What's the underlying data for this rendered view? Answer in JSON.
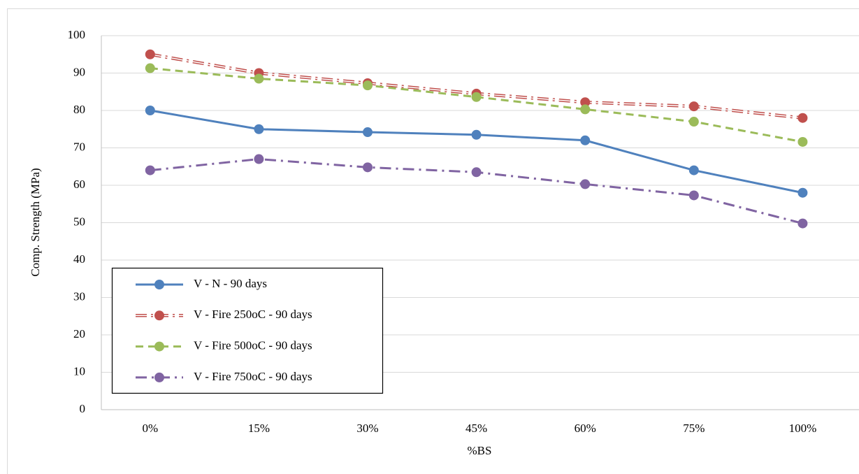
{
  "chart_data": {
    "type": "line",
    "x_label": "%BS",
    "y_label": "Comp. Strength (MPa)",
    "categories": [
      "0%",
      "15%",
      "30%",
      "45%",
      "60%",
      "75%",
      "100%"
    ],
    "series": [
      {
        "name": "V - N - 90 days",
        "color": "#4f81bd",
        "line_style": "solid",
        "values": [
          80,
          75,
          74.2,
          73.5,
          72,
          64,
          58
        ]
      },
      {
        "name": "V - Fire 250oC - 90 days",
        "color": "#c0504d",
        "line_style": "double-dash-dot",
        "values": [
          95,
          90,
          87.3,
          84.5,
          82.2,
          81.1,
          78
        ]
      },
      {
        "name": "V - Fire 500oC - 90 days",
        "color": "#9bbb59",
        "line_style": "dashed",
        "values": [
          91.3,
          88.5,
          86.7,
          83.6,
          80.3,
          77,
          71.6
        ]
      },
      {
        "name": "V - Fire 750oC - 90 days",
        "color": "#8064a2",
        "line_style": "dash-dot",
        "values": [
          64,
          67,
          64.8,
          63.5,
          60.3,
          57.3,
          49.8
        ]
      }
    ],
    "ylim": [
      0,
      100
    ],
    "yticks": [
      0,
      10,
      20,
      30,
      40,
      50,
      60,
      70,
      80,
      90,
      100
    ],
    "grid": true,
    "legend": "lower left"
  }
}
